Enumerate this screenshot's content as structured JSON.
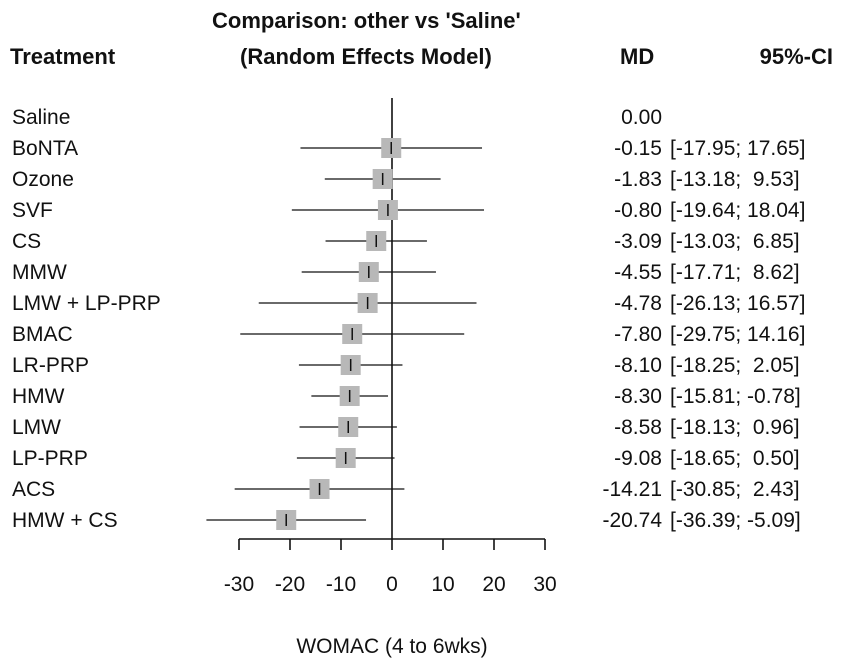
{
  "chart_data": {
    "type": "forest",
    "title": "Comparison: other vs 'Saline'",
    "subtitle": "(Random Effects Model)",
    "column_headers": {
      "treatment": "Treatment",
      "md": "MD",
      "ci": "95%-CI"
    },
    "xlabel": "WOMAC (4 to 6wks)",
    "xlim": [
      -30,
      30
    ],
    "xticks": [
      "-30",
      "-20",
      "-10",
      "0",
      "10",
      "20",
      "30"
    ],
    "reference_line": 0,
    "rows": [
      {
        "treatment": "Saline",
        "md": 0.0,
        "lower": null,
        "upper": null,
        "md_text": "0.00",
        "ci_text": ""
      },
      {
        "treatment": "BoNTA",
        "md": -0.15,
        "lower": -17.95,
        "upper": 17.65,
        "md_text": "-0.15",
        "ci_text": "[-17.95; 17.65]"
      },
      {
        "treatment": "Ozone",
        "md": -1.83,
        "lower": -13.18,
        "upper": 9.53,
        "md_text": "-1.83",
        "ci_text": "[-13.18;  9.53]"
      },
      {
        "treatment": "SVF",
        "md": -0.8,
        "lower": -19.64,
        "upper": 18.04,
        "md_text": "-0.80",
        "ci_text": "[-19.64; 18.04]"
      },
      {
        "treatment": "CS",
        "md": -3.09,
        "lower": -13.03,
        "upper": 6.85,
        "md_text": "-3.09",
        "ci_text": "[-13.03;  6.85]"
      },
      {
        "treatment": "MMW",
        "md": -4.55,
        "lower": -17.71,
        "upper": 8.62,
        "md_text": "-4.55",
        "ci_text": "[-17.71;  8.62]"
      },
      {
        "treatment": "LMW + LP-PRP",
        "md": -4.78,
        "lower": -26.13,
        "upper": 16.57,
        "md_text": "-4.78",
        "ci_text": "[-26.13; 16.57]"
      },
      {
        "treatment": "BMAC",
        "md": -7.8,
        "lower": -29.75,
        "upper": 14.16,
        "md_text": "-7.80",
        "ci_text": "[-29.75; 14.16]"
      },
      {
        "treatment": "LR-PRP",
        "md": -8.1,
        "lower": -18.25,
        "upper": 2.05,
        "md_text": "-8.10",
        "ci_text": "[-18.25;  2.05]"
      },
      {
        "treatment": "HMW",
        "md": -8.3,
        "lower": -15.81,
        "upper": -0.78,
        "md_text": "-8.30",
        "ci_text": "[-15.81; -0.78]"
      },
      {
        "treatment": "LMW",
        "md": -8.58,
        "lower": -18.13,
        "upper": 0.96,
        "md_text": "-8.58",
        "ci_text": "[-18.13;  0.96]"
      },
      {
        "treatment": "LP-PRP",
        "md": -9.08,
        "lower": -18.65,
        "upper": 0.5,
        "md_text": "-9.08",
        "ci_text": "[-18.65;  0.50]"
      },
      {
        "treatment": "ACS",
        "md": -14.21,
        "lower": -30.85,
        "upper": 2.43,
        "md_text": "-14.21",
        "ci_text": "[-30.85;  2.43]"
      },
      {
        "treatment": "HMW + CS",
        "md": -20.74,
        "lower": -36.39,
        "upper": -5.09,
        "md_text": "-20.74",
        "ci_text": "[-36.39; -5.09]"
      }
    ],
    "colors": {
      "box": "#b8b8b8",
      "line": "#111111"
    }
  }
}
